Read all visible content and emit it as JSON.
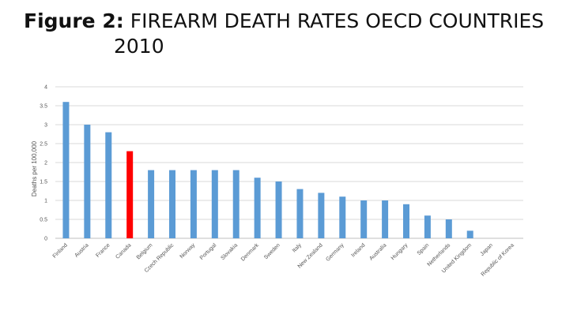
{
  "title": {
    "lead": "Figure 2:",
    "main": "FIREARM DEATH RATES OECD COUNTRIES",
    "year": "2010"
  },
  "chart_data": {
    "type": "bar",
    "title": "Figure 2: FIREARM DEATH RATES OECD COUNTRIES 2010",
    "xlabel": "",
    "ylabel": "Deaths per 100,000",
    "ylim": [
      0,
      4
    ],
    "yticks": [
      "0",
      "0.5",
      "1",
      "1.5",
      "2",
      "2.5",
      "3",
      "3.5",
      "4"
    ],
    "grid": true,
    "categories": [
      "Finland",
      "Austria",
      "France",
      "Canada",
      "Belgium",
      "Czech Republic",
      "Norway",
      "Portugal",
      "Slovakia",
      "Denmark",
      "Sweden",
      "Italy",
      "New Zealand",
      "Germany",
      "Ireland",
      "Australia",
      "Hungary",
      "Spain",
      "Netherlands",
      "United Kingdom",
      "Japan",
      "Republic of Korea"
    ],
    "values": [
      3.6,
      3.0,
      2.8,
      2.3,
      1.8,
      1.8,
      1.8,
      1.8,
      1.8,
      1.6,
      1.5,
      1.3,
      1.2,
      1.1,
      1.0,
      1.0,
      0.9,
      0.6,
      0.5,
      0.2,
      0.0,
      0.0
    ],
    "highlight": "Canada",
    "colors": {
      "bar": "#5b9bd5",
      "highlight": "#ff0000",
      "grid": "#d9d9d9",
      "axis": "#bfbfbf"
    }
  }
}
